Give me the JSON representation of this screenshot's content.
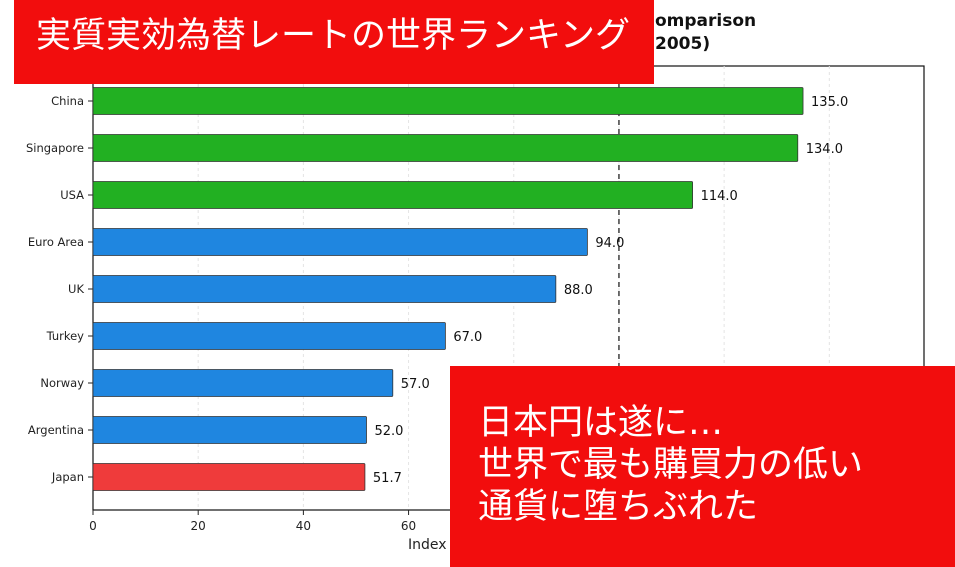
{
  "overlay": {
    "top_banner": "実質実効為替レートの世界ランキング",
    "bottom_banner_lines": [
      "日本円は遂に…",
      "世界で最も購買力の低い",
      "通貨に堕ちぶれた"
    ]
  },
  "chart_data": {
    "type": "bar",
    "orientation": "horizontal",
    "title_visible_lines": [
      "omparison",
      "2005)"
    ],
    "xlabel": "Index",
    "categories": [
      "China",
      "Singapore",
      "USA",
      "Euro Area",
      "UK",
      "Turkey",
      "Norway",
      "Argentina",
      "Japan"
    ],
    "values": [
      135.0,
      134.0,
      114.0,
      94.0,
      88.0,
      67.0,
      57.0,
      52.0,
      51.7
    ],
    "value_labels": [
      "135.0",
      "134.0",
      "114.0",
      "94.0",
      "88.0",
      "67.0",
      "57.0",
      "52.0",
      "51.7"
    ],
    "bar_colors": [
      "#22b022",
      "#22b022",
      "#22b022",
      "#1f86e0",
      "#1f86e0",
      "#1f86e0",
      "#1f86e0",
      "#1f86e0",
      "#ef3b3b"
    ],
    "x_ticks": [
      "0",
      "20",
      "40",
      "60"
    ],
    "xlim": [
      0,
      158
    ],
    "reference_line": 100,
    "grid": true
  }
}
